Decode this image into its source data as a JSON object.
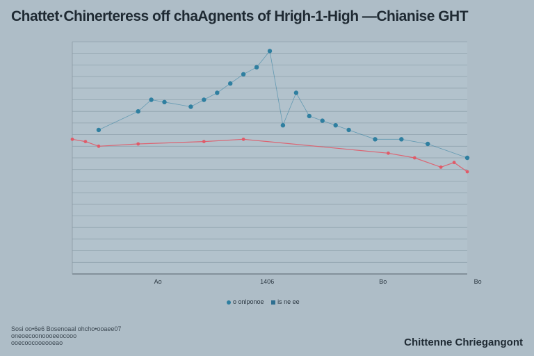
{
  "chart_data": {
    "type": "line",
    "title": "Chattet·Chinerteress off chaAgnents of Hrigh-1-High —Chianise GHT",
    "xlabel": "",
    "ylabel": "",
    "x": [
      0,
      1,
      2,
      3,
      4,
      5,
      6,
      7,
      8,
      9,
      10,
      11,
      12,
      13,
      14,
      15,
      16,
      17,
      18,
      19,
      20,
      21,
      22,
      23,
      24,
      25,
      26,
      27,
      28,
      29,
      30
    ],
    "xlim": [
      0,
      30
    ],
    "ylim": [
      0,
      100
    ],
    "x_tick_labels": [
      {
        "x": 6.5,
        "label": "Ao"
      },
      {
        "x": 14.8,
        "label": "1406"
      },
      {
        "x": 23.6,
        "label": "Bo"
      },
      {
        "x": 30.8,
        "label": "Bo"
      }
    ],
    "series": [
      {
        "name": "o onlponoe",
        "color": "#2f7fa0",
        "values": [
          null,
          null,
          62,
          null,
          null,
          70,
          75,
          74,
          null,
          72,
          75,
          78,
          82,
          86,
          89,
          96,
          64,
          78,
          68,
          66,
          64,
          62,
          null,
          58,
          null,
          58,
          null,
          56,
          null,
          null,
          50
        ]
      },
      {
        "name": "is ne ee",
        "color": "#e05a68",
        "values": [
          58,
          57,
          55,
          null,
          null,
          56,
          null,
          null,
          null,
          null,
          57,
          null,
          null,
          58,
          null,
          null,
          null,
          null,
          null,
          null,
          null,
          null,
          null,
          null,
          52,
          null,
          50,
          null,
          46,
          48,
          44
        ]
      }
    ],
    "grid": true,
    "legend_position": "bottom-center"
  },
  "legend": {
    "item1": "o onlponoe",
    "item2": "is ne ee"
  },
  "footer": {
    "left_line1": "Sosi oo•6e6 Bosenoaal ohcho•ooaee07",
    "left_line2": "oneoecoonoooeeocooo",
    "left_line3": "ooecoocooeooeao",
    "right": "Chittenne Chriegangont"
  }
}
